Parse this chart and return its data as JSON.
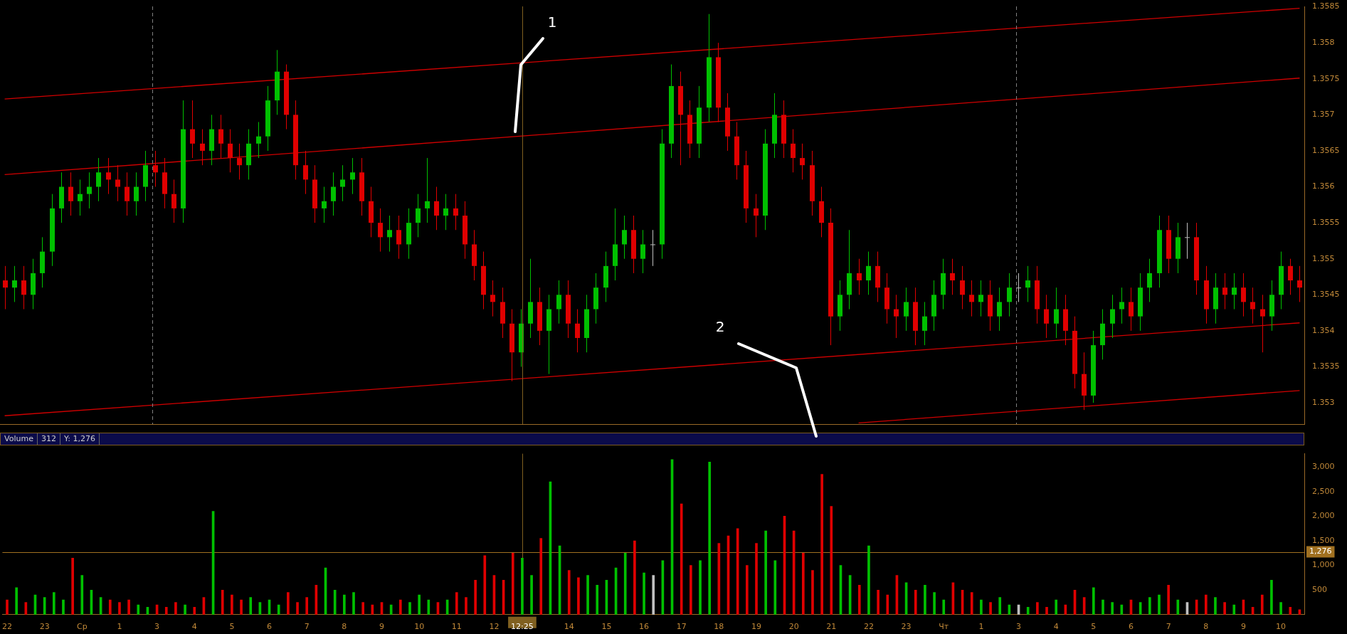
{
  "chart_data": [
    {
      "type": "candlestick",
      "tick_labels": "y",
      "ylim": [
        1.3527,
        1.3585
      ],
      "yticks": [
        1.353,
        1.3535,
        1.354,
        1.3545,
        1.355,
        1.3555,
        1.356,
        1.3565,
        1.357,
        1.3575,
        1.358,
        1.3585
      ],
      "categories": [
        null,
        null,
        null,
        null,
        null,
        null,
        null,
        null,
        null,
        null,
        null,
        null,
        null,
        null,
        null,
        null,
        null,
        null,
        null,
        null,
        null,
        null,
        null,
        null,
        null,
        null,
        null,
        null,
        null,
        null,
        null,
        null,
        null,
        null,
        null,
        null,
        null,
        null,
        null,
        null,
        null,
        null,
        null,
        null,
        null,
        null,
        null,
        null,
        null,
        null,
        null,
        null,
        null,
        null,
        null,
        null,
        null,
        null,
        null,
        null,
        null,
        null,
        null,
        null,
        null,
        null,
        null,
        null,
        null,
        null,
        null,
        null,
        null,
        null,
        null,
        null,
        null,
        null,
        null,
        null,
        null,
        null,
        null,
        null,
        null,
        null,
        null,
        null,
        null,
        null,
        null,
        null,
        null,
        null,
        null,
        null,
        null,
        null,
        null,
        null,
        null,
        null,
        null,
        null,
        null,
        null,
        null,
        null,
        null,
        null,
        null,
        null,
        null,
        null,
        null,
        null,
        null,
        null,
        null,
        null,
        null,
        null,
        null,
        null,
        null,
        null,
        null,
        null,
        null,
        null,
        null,
        null,
        null,
        null,
        null,
        null,
        null,
        null,
        null
      ],
      "ohlc": [
        [
          1.3547,
          1.3549,
          1.3543,
          1.3546
        ],
        [
          1.3546,
          1.3549,
          1.3544,
          1.3547
        ],
        [
          1.3547,
          1.3549,
          1.3543,
          1.3545
        ],
        [
          1.3545,
          1.355,
          1.3543,
          1.3548
        ],
        [
          1.3548,
          1.3553,
          1.3546,
          1.3551
        ],
        [
          1.3551,
          1.3559,
          1.3549,
          1.3557
        ],
        [
          1.3557,
          1.3562,
          1.3555,
          1.356
        ],
        [
          1.356,
          1.3562,
          1.3556,
          1.3558
        ],
        [
          1.3558,
          1.3561,
          1.3556,
          1.3559
        ],
        [
          1.3559,
          1.3562,
          1.3557,
          1.356
        ],
        [
          1.356,
          1.3564,
          1.3558,
          1.3562
        ],
        [
          1.3562,
          1.3564,
          1.3559,
          1.3561
        ],
        [
          1.3561,
          1.3563,
          1.3558,
          1.356
        ],
        [
          1.356,
          1.3562,
          1.3556,
          1.3558
        ],
        [
          1.3558,
          1.3562,
          1.3556,
          1.356
        ],
        [
          1.356,
          1.3565,
          1.3558,
          1.3563
        ],
        [
          1.3563,
          1.3565,
          1.356,
          1.3562
        ],
        [
          1.3562,
          1.3564,
          1.3557,
          1.3559
        ],
        [
          1.3559,
          1.3561,
          1.3555,
          1.3557
        ],
        [
          1.3557,
          1.3572,
          1.3555,
          1.3568
        ],
        [
          1.3568,
          1.3572,
          1.3564,
          1.3566
        ],
        [
          1.3566,
          1.3568,
          1.3563,
          1.3565
        ],
        [
          1.3565,
          1.357,
          1.3563,
          1.3568
        ],
        [
          1.3568,
          1.357,
          1.3564,
          1.3566
        ],
        [
          1.3566,
          1.3568,
          1.3562,
          1.3564
        ],
        [
          1.3564,
          1.3566,
          1.3561,
          1.3563
        ],
        [
          1.3563,
          1.3568,
          1.3561,
          1.3566
        ],
        [
          1.3566,
          1.3569,
          1.3564,
          1.3567
        ],
        [
          1.3567,
          1.3574,
          1.3565,
          1.3572
        ],
        [
          1.3572,
          1.3579,
          1.357,
          1.3576
        ],
        [
          1.3576,
          1.3577,
          1.3568,
          1.357
        ],
        [
          1.357,
          1.3572,
          1.3561,
          1.3563
        ],
        [
          1.3563,
          1.3565,
          1.3559,
          1.3561
        ],
        [
          1.3561,
          1.3563,
          1.3555,
          1.3557
        ],
        [
          1.3557,
          1.356,
          1.3555,
          1.3558
        ],
        [
          1.3558,
          1.3562,
          1.3556,
          1.356
        ],
        [
          1.356,
          1.3563,
          1.3558,
          1.3561
        ],
        [
          1.3561,
          1.3564,
          1.3559,
          1.3562
        ],
        [
          1.3562,
          1.3564,
          1.3556,
          1.3558
        ],
        [
          1.3558,
          1.356,
          1.3553,
          1.3555
        ],
        [
          1.3555,
          1.3557,
          1.3551,
          1.3553
        ],
        [
          1.3553,
          1.3556,
          1.3551,
          1.3554
        ],
        [
          1.3554,
          1.3556,
          1.355,
          1.3552
        ],
        [
          1.3552,
          1.3557,
          1.355,
          1.3555
        ],
        [
          1.3555,
          1.3559,
          1.3553,
          1.3557
        ],
        [
          1.3557,
          1.3564,
          1.3555,
          1.3558
        ],
        [
          1.3558,
          1.356,
          1.3554,
          1.3556
        ],
        [
          1.3556,
          1.3559,
          1.3554,
          1.3557
        ],
        [
          1.3557,
          1.3559,
          1.3554,
          1.3556
        ],
        [
          1.3556,
          1.3558,
          1.355,
          1.3552
        ],
        [
          1.3552,
          1.3554,
          1.3547,
          1.3549
        ],
        [
          1.3549,
          1.3551,
          1.3543,
          1.3545
        ],
        [
          1.3545,
          1.3547,
          1.3542,
          1.3544
        ],
        [
          1.3544,
          1.3546,
          1.3539,
          1.3541
        ],
        [
          1.3541,
          1.3543,
          1.3533,
          1.3537
        ],
        [
          1.3537,
          1.3543,
          1.3535,
          1.3541
        ],
        [
          1.3541,
          1.355,
          1.3539,
          1.3544
        ],
        [
          1.3544,
          1.3546,
          1.3538,
          1.354
        ],
        [
          1.354,
          1.3545,
          1.3534,
          1.3543
        ],
        [
          1.3543,
          1.3547,
          1.3541,
          1.3545
        ],
        [
          1.3545,
          1.3547,
          1.3539,
          1.3541
        ],
        [
          1.3541,
          1.3543,
          1.3537,
          1.3539
        ],
        [
          1.3539,
          1.3545,
          1.3537,
          1.3543
        ],
        [
          1.3543,
          1.3548,
          1.3541,
          1.3546
        ],
        [
          1.3546,
          1.3551,
          1.3544,
          1.3549
        ],
        [
          1.3549,
          1.3557,
          1.3547,
          1.3552
        ],
        [
          1.3552,
          1.3556,
          1.355,
          1.3554
        ],
        [
          1.3554,
          1.3556,
          1.3548,
          1.355
        ],
        [
          1.355,
          1.3554,
          1.3548,
          1.3552
        ],
        [
          1.3552,
          1.3554,
          1.3549,
          1.3552
        ],
        [
          1.3552,
          1.3568,
          1.355,
          1.3566
        ],
        [
          1.3566,
          1.3577,
          1.3564,
          1.3574
        ],
        [
          1.3574,
          1.3576,
          1.3563,
          1.357
        ],
        [
          1.357,
          1.3572,
          1.3564,
          1.3566
        ],
        [
          1.3566,
          1.3574,
          1.3564,
          1.3571
        ],
        [
          1.3571,
          1.3584,
          1.3569,
          1.3578
        ],
        [
          1.3578,
          1.358,
          1.3569,
          1.3571
        ],
        [
          1.3571,
          1.3573,
          1.3565,
          1.3567
        ],
        [
          1.3567,
          1.3569,
          1.3561,
          1.3563
        ],
        [
          1.3563,
          1.3565,
          1.3555,
          1.3557
        ],
        [
          1.3557,
          1.3559,
          1.3553,
          1.3556
        ],
        [
          1.3556,
          1.3568,
          1.3554,
          1.3566
        ],
        [
          1.3566,
          1.3573,
          1.3564,
          1.357
        ],
        [
          1.357,
          1.3572,
          1.3564,
          1.3566
        ],
        [
          1.3566,
          1.3568,
          1.3562,
          1.3564
        ],
        [
          1.3564,
          1.3566,
          1.3561,
          1.3563
        ],
        [
          1.3563,
          1.3565,
          1.3556,
          1.3558
        ],
        [
          1.3558,
          1.356,
          1.3553,
          1.3555
        ],
        [
          1.3555,
          1.3557,
          1.3538,
          1.3542
        ],
        [
          1.3542,
          1.3547,
          1.354,
          1.3545
        ],
        [
          1.3545,
          1.3554,
          1.3543,
          1.3548
        ],
        [
          1.3548,
          1.355,
          1.3545,
          1.3547
        ],
        [
          1.3547,
          1.3551,
          1.3545,
          1.3549
        ],
        [
          1.3549,
          1.3551,
          1.3544,
          1.3546
        ],
        [
          1.3546,
          1.3548,
          1.3541,
          1.3543
        ],
        [
          1.3543,
          1.3545,
          1.3539,
          1.3542
        ],
        [
          1.3542,
          1.3546,
          1.354,
          1.3544
        ],
        [
          1.3544,
          1.3546,
          1.3538,
          1.354
        ],
        [
          1.354,
          1.3544,
          1.3538,
          1.3542
        ],
        [
          1.3542,
          1.3547,
          1.354,
          1.3545
        ],
        [
          1.3545,
          1.355,
          1.3543,
          1.3548
        ],
        [
          1.3548,
          1.355,
          1.3545,
          1.3547
        ],
        [
          1.3547,
          1.3549,
          1.3543,
          1.3545
        ],
        [
          1.3545,
          1.3547,
          1.3542,
          1.3544
        ],
        [
          1.3544,
          1.3547,
          1.3542,
          1.3545
        ],
        [
          1.3545,
          1.3547,
          1.354,
          1.3542
        ],
        [
          1.3542,
          1.3546,
          1.354,
          1.3544
        ],
        [
          1.3544,
          1.3548,
          1.3542,
          1.3546
        ],
        [
          1.3546,
          1.3548,
          1.3544,
          1.3546
        ],
        [
          1.3546,
          1.3549,
          1.3544,
          1.3547
        ],
        [
          1.3547,
          1.3549,
          1.3541,
          1.3543
        ],
        [
          1.3543,
          1.3545,
          1.3539,
          1.3541
        ],
        [
          1.3541,
          1.3546,
          1.3539,
          1.3543
        ],
        [
          1.3543,
          1.3545,
          1.3538,
          1.354
        ],
        [
          1.354,
          1.3542,
          1.3532,
          1.3534
        ],
        [
          1.3534,
          1.3537,
          1.3529,
          1.3531
        ],
        [
          1.3531,
          1.354,
          1.353,
          1.3538
        ],
        [
          1.3538,
          1.3543,
          1.3536,
          1.3541
        ],
        [
          1.3541,
          1.3545,
          1.3539,
          1.3543
        ],
        [
          1.3543,
          1.3546,
          1.3541,
          1.3544
        ],
        [
          1.3544,
          1.3546,
          1.354,
          1.3542
        ],
        [
          1.3542,
          1.3548,
          1.354,
          1.3546
        ],
        [
          1.3546,
          1.355,
          1.3544,
          1.3548
        ],
        [
          1.3548,
          1.3556,
          1.3546,
          1.3554
        ],
        [
          1.3554,
          1.3556,
          1.3548,
          1.355
        ],
        [
          1.355,
          1.3555,
          1.3548,
          1.3553
        ],
        [
          1.3553,
          1.3555,
          1.355,
          1.3553
        ],
        [
          1.3553,
          1.3555,
          1.3545,
          1.3547
        ],
        [
          1.3547,
          1.3549,
          1.3541,
          1.3543
        ],
        [
          1.3543,
          1.3548,
          1.3541,
          1.3546
        ],
        [
          1.3546,
          1.3548,
          1.3543,
          1.3545
        ],
        [
          1.3545,
          1.3548,
          1.3543,
          1.3546
        ],
        [
          1.3546,
          1.3548,
          1.3542,
          1.3544
        ],
        [
          1.3544,
          1.3546,
          1.3541,
          1.3543
        ],
        [
          1.3543,
          1.3545,
          1.3537,
          1.3542
        ],
        [
          1.3542,
          1.3547,
          1.354,
          1.3545
        ],
        [
          1.3545,
          1.3551,
          1.3543,
          1.3549
        ],
        [
          1.3549,
          1.355,
          1.3545,
          1.3547
        ],
        [
          1.3547,
          1.3549,
          1.3544,
          1.3546
        ]
      ],
      "colors": [
        "#e00000",
        "#00c000",
        "#e00000",
        "#00c000",
        "#00c000",
        "#00c000",
        "#00c000",
        "#e00000",
        "#00c000",
        "#00c000",
        "#00c000",
        "#e00000",
        "#e00000",
        "#e00000",
        "#00c000",
        "#00c000",
        "#e00000",
        "#e00000",
        "#e00000",
        "#00c000",
        "#e00000",
        "#e00000",
        "#00c000",
        "#e00000",
        "#e00000",
        "#e00000",
        "#00c000",
        "#00c000",
        "#00c000",
        "#00c000",
        "#e00000",
        "#e00000",
        "#e00000",
        "#e00000",
        "#00c000",
        "#00c000",
        "#00c000",
        "#00c000",
        "#e00000",
        "#e00000",
        "#e00000",
        "#00c000",
        "#e00000",
        "#00c000",
        "#00c000",
        "#00c000",
        "#e00000",
        "#00c000",
        "#e00000",
        "#e00000",
        "#e00000",
        "#e00000",
        "#e00000",
        "#e00000",
        "#e00000",
        "#00c000",
        "#00c000",
        "#e00000",
        "#00c000",
        "#00c000",
        "#e00000",
        "#e00000",
        "#00c000",
        "#00c000",
        "#00c000",
        "#00c000",
        "#00c000",
        "#e00000",
        "#00c000",
        "#c0c0c0",
        "#00c000",
        "#00c000",
        "#e00000",
        "#e00000",
        "#00c000",
        "#00c000",
        "#e00000",
        "#e00000",
        "#e00000",
        "#e00000",
        "#e00000",
        "#00c000",
        "#00c000",
        "#e00000",
        "#e00000",
        "#e00000",
        "#e00000",
        "#e00000",
        "#e00000",
        "#00c000",
        "#00c000",
        "#e00000",
        "#00c000",
        "#e00000",
        "#e00000",
        "#e00000",
        "#00c000",
        "#e00000",
        "#00c000",
        "#00c000",
        "#00c000",
        "#e00000",
        "#e00000",
        "#e00000",
        "#00c000",
        "#e00000",
        "#00c000",
        "#00c000",
        "#c0c0c0",
        "#00c000",
        "#e00000",
        "#e00000",
        "#00c000",
        "#e00000",
        "#e00000",
        "#e00000",
        "#00c000",
        "#00c000",
        "#00c000",
        "#00c000",
        "#e00000",
        "#00c000",
        "#00c000",
        "#00c000",
        "#e00000",
        "#00c000",
        "#c0c0c0",
        "#e00000",
        "#e00000",
        "#00c000",
        "#e00000",
        "#00c000",
        "#e00000",
        "#e00000",
        "#e00000",
        "#00c000",
        "#00c000",
        "#e00000",
        "#e00000"
      ],
      "series": [
        {
          "type": "line",
          "color": "#d00000",
          "values": [
            1.35722,
            null,
            null,
            null,
            null,
            null,
            null,
            null,
            null,
            null,
            null,
            null,
            null,
            null,
            null,
            null,
            null,
            null,
            null,
            null,
            null,
            null,
            null,
            null,
            null,
            null,
            null,
            null,
            null,
            null,
            null,
            null,
            null,
            null,
            null,
            null,
            null,
            null,
            null,
            null,
            null,
            null,
            null,
            null,
            null,
            null,
            null,
            null,
            null,
            null,
            null,
            null,
            null,
            null,
            null,
            null,
            null,
            null,
            null,
            null,
            null,
            null,
            null,
            null,
            null,
            null,
            null,
            null,
            null,
            null,
            null,
            null,
            null,
            null,
            null,
            null,
            null,
            null,
            null,
            null,
            null,
            null,
            null,
            null,
            null,
            null,
            null,
            null,
            null,
            null,
            null,
            null,
            null,
            null,
            null,
            null,
            null,
            null,
            null,
            null,
            null,
            null,
            null,
            null,
            null,
            null,
            null,
            null,
            null,
            null,
            null,
            null,
            null,
            null,
            null,
            null,
            null,
            null,
            null,
            null,
            null,
            null,
            null,
            null,
            null,
            null,
            null,
            null,
            null,
            null,
            null,
            null,
            null,
            null,
            null,
            null,
            null,
            null,
            1.35848
          ]
        },
        {
          "type": "line",
          "color": "#d00000",
          "values": [
            1.35617,
            null,
            null,
            null,
            null,
            null,
            null,
            null,
            null,
            null,
            null,
            null,
            null,
            null,
            null,
            null,
            null,
            null,
            null,
            null,
            null,
            null,
            null,
            null,
            null,
            null,
            null,
            null,
            null,
            null,
            null,
            null,
            null,
            null,
            null,
            null,
            null,
            null,
            null,
            null,
            null,
            null,
            null,
            null,
            null,
            null,
            null,
            null,
            null,
            null,
            null,
            null,
            null,
            null,
            null,
            null,
            null,
            null,
            null,
            null,
            null,
            null,
            null,
            null,
            null,
            null,
            null,
            null,
            null,
            null,
            null,
            null,
            null,
            null,
            null,
            null,
            null,
            null,
            null,
            null,
            null,
            null,
            null,
            null,
            null,
            null,
            null,
            null,
            null,
            null,
            null,
            null,
            null,
            null,
            null,
            null,
            null,
            null,
            null,
            null,
            null,
            null,
            null,
            null,
            null,
            null,
            null,
            null,
            null,
            null,
            null,
            null,
            null,
            null,
            null,
            null,
            null,
            null,
            null,
            null,
            null,
            null,
            null,
            null,
            null,
            null,
            null,
            null,
            null,
            null,
            null,
            null,
            null,
            null,
            null,
            null,
            null,
            null,
            1.35751
          ]
        },
        {
          "type": "line",
          "color": "#d00000",
          "values": [
            1.35282,
            null,
            null,
            null,
            null,
            null,
            null,
            null,
            null,
            null,
            null,
            null,
            null,
            null,
            null,
            null,
            null,
            null,
            null,
            null,
            null,
            null,
            null,
            null,
            null,
            null,
            null,
            null,
            null,
            null,
            null,
            null,
            null,
            null,
            null,
            null,
            null,
            null,
            null,
            null,
            null,
            null,
            null,
            null,
            null,
            null,
            null,
            null,
            null,
            null,
            null,
            null,
            null,
            null,
            null,
            null,
            null,
            null,
            null,
            null,
            null,
            null,
            null,
            null,
            null,
            null,
            null,
            null,
            null,
            null,
            null,
            null,
            null,
            null,
            null,
            null,
            null,
            null,
            null,
            null,
            null,
            null,
            null,
            null,
            null,
            null,
            null,
            null,
            null,
            null,
            null,
            null,
            null,
            null,
            null,
            null,
            null,
            null,
            null,
            null,
            null,
            null,
            null,
            null,
            null,
            null,
            null,
            null,
            null,
            null,
            null,
            null,
            null,
            null,
            null,
            null,
            null,
            null,
            null,
            null,
            null,
            null,
            null,
            null,
            null,
            null,
            null,
            null,
            null,
            null,
            null,
            null,
            null,
            null,
            null,
            null,
            null,
            null,
            1.35411
          ]
        },
        {
          "type": "line",
          "color": "#d00000",
          "values": [
            null,
            null,
            null,
            null,
            null,
            null,
            null,
            null,
            null,
            null,
            null,
            null,
            null,
            null,
            null,
            null,
            null,
            null,
            null,
            null,
            null,
            null,
            null,
            null,
            null,
            null,
            null,
            null,
            null,
            null,
            null,
            null,
            null,
            null,
            null,
            null,
            null,
            null,
            null,
            null,
            null,
            null,
            null,
            null,
            null,
            null,
            null,
            null,
            null,
            null,
            null,
            null,
            null,
            null,
            null,
            null,
            null,
            null,
            null,
            null,
            null,
            null,
            null,
            null,
            null,
            null,
            null,
            null,
            null,
            null,
            null,
            null,
            null,
            null,
            null,
            null,
            null,
            null,
            null,
            null,
            null,
            null,
            null,
            null,
            null,
            null,
            null,
            null,
            null,
            null,
            null,
            1.35272,
            null,
            null,
            null,
            null,
            null,
            null,
            null,
            null,
            null,
            null,
            null,
            null,
            null,
            null,
            null,
            null,
            null,
            null,
            null,
            null,
            null,
            null,
            null,
            null,
            null,
            null,
            null,
            null,
            null,
            null,
            null,
            null,
            null,
            null,
            null,
            null,
            null,
            null,
            null,
            null,
            null,
            null,
            null,
            null,
            null,
            null,
            1.35317
          ]
        }
      ],
      "annotations": [
        "1",
        "2"
      ]
    },
    {
      "type": "bar",
      "title": "Volume",
      "annotations": [
        "312",
        "Y: 1,276"
      ],
      "ylim": [
        0,
        3270
      ],
      "yticks": [
        {
          "value": 500,
          "label": "500"
        },
        {
          "value": 1000,
          "label": "1,000"
        },
        {
          "value": 1500,
          "label": "1,500"
        },
        {
          "value": 2000,
          "label": "2,000"
        },
        {
          "value": 2500,
          "label": "2,500"
        },
        {
          "value": 3000,
          "label": "3,000"
        }
      ],
      "categories": [
        "22",
        null,
        null,
        null,
        "23",
        null,
        null,
        null,
        "Ср",
        null,
        null,
        null,
        "1",
        null,
        null,
        null,
        "3",
        null,
        null,
        null,
        "4",
        null,
        null,
        null,
        "5",
        null,
        null,
        null,
        "6",
        null,
        null,
        null,
        "7",
        null,
        null,
        null,
        "8",
        null,
        null,
        null,
        "9",
        null,
        null,
        null,
        "10",
        null,
        null,
        null,
        "11",
        null,
        null,
        null,
        "12",
        null,
        null,
        "12:25",
        null,
        null,
        null,
        null,
        "14",
        null,
        null,
        null,
        "15",
        null,
        null,
        null,
        "16",
        null,
        null,
        null,
        "17",
        null,
        null,
        null,
        "18",
        null,
        null,
        null,
        "19",
        null,
        null,
        null,
        "20",
        null,
        null,
        null,
        "21",
        null,
        null,
        null,
        "22",
        null,
        null,
        null,
        "23",
        null,
        null,
        null,
        "Чт",
        null,
        null,
        null,
        "1",
        null,
        null,
        null,
        "3",
        null,
        null,
        null,
        "4",
        null,
        null,
        null,
        "5",
        null,
        null,
        null,
        "6",
        null,
        null,
        null,
        "7",
        null,
        null,
        null,
        "8",
        null,
        null,
        null,
        "9",
        null,
        null,
        null,
        "10",
        null,
        null
      ],
      "values": [
        300,
        550,
        250,
        400,
        350,
        450,
        300,
        1150,
        800,
        500,
        350,
        300,
        250,
        300,
        200,
        150,
        200,
        150,
        250,
        200,
        150,
        350,
        2100,
        500,
        400,
        300,
        350,
        250,
        300,
        200,
        450,
        250,
        350,
        600,
        950,
        500,
        400,
        450,
        250,
        200,
        250,
        200,
        300,
        250,
        400,
        300,
        250,
        300,
        450,
        350,
        700,
        1200,
        800,
        700,
        1250,
        1150,
        800,
        1550,
        2700,
        1400,
        900,
        750,
        800,
        600,
        700,
        950,
        1250,
        1500,
        850,
        800,
        1100,
        3150,
        2250,
        1000,
        1100,
        3100,
        1450,
        1600,
        1750,
        1000,
        1450,
        1700,
        1100,
        2000,
        1700,
        1250,
        900,
        2850,
        2200,
        1000,
        800,
        600,
        1400,
        500,
        400,
        800,
        650,
        500,
        600,
        450,
        300,
        650,
        500,
        450,
        300,
        250,
        350,
        200,
        200,
        150,
        250,
        150,
        300,
        200,
        500,
        350,
        550,
        300,
        250,
        200,
        300,
        250,
        350,
        400,
        600,
        300,
        250,
        300,
        400,
        350,
        250,
        200,
        300,
        150,
        400,
        700,
        250,
        150,
        100
      ],
      "colors": [
        "#e00000",
        "#00c000",
        "#e00000",
        "#00c000",
        "#00c000",
        "#00c000",
        "#00c000",
        "#e00000",
        "#00c000",
        "#00c000",
        "#00c000",
        "#e00000",
        "#e00000",
        "#e00000",
        "#00c000",
        "#00c000",
        "#e00000",
        "#e00000",
        "#e00000",
        "#00c000",
        "#e00000",
        "#e00000",
        "#00c000",
        "#e00000",
        "#e00000",
        "#e00000",
        "#00c000",
        "#00c000",
        "#00c000",
        "#00c000",
        "#e00000",
        "#e00000",
        "#e00000",
        "#e00000",
        "#00c000",
        "#00c000",
        "#00c000",
        "#00c000",
        "#e00000",
        "#e00000",
        "#e00000",
        "#00c000",
        "#e00000",
        "#00c000",
        "#00c000",
        "#00c000",
        "#e00000",
        "#00c000",
        "#e00000",
        "#e00000",
        "#e00000",
        "#e00000",
        "#e00000",
        "#e00000",
        "#e00000",
        "#00c000",
        "#00c000",
        "#e00000",
        "#00c000",
        "#00c000",
        "#e00000",
        "#e00000",
        "#00c000",
        "#00c000",
        "#00c000",
        "#00c000",
        "#00c000",
        "#e00000",
        "#00c000",
        "#c0c0c0",
        "#00c000",
        "#00c000",
        "#e00000",
        "#e00000",
        "#00c000",
        "#00c000",
        "#e00000",
        "#e00000",
        "#e00000",
        "#e00000",
        "#e00000",
        "#00c000",
        "#00c000",
        "#e00000",
        "#e00000",
        "#e00000",
        "#e00000",
        "#e00000",
        "#e00000",
        "#00c000",
        "#00c000",
        "#e00000",
        "#00c000",
        "#e00000",
        "#e00000",
        "#e00000",
        "#00c000",
        "#e00000",
        "#00c000",
        "#00c000",
        "#00c000",
        "#e00000",
        "#e00000",
        "#e00000",
        "#00c000",
        "#e00000",
        "#00c000",
        "#00c000",
        "#c0c0c0",
        "#00c000",
        "#e00000",
        "#e00000",
        "#00c000",
        "#e00000",
        "#e00000",
        "#e00000",
        "#00c000",
        "#00c000",
        "#00c000",
        "#00c000",
        "#e00000",
        "#00c000",
        "#00c000",
        "#00c000",
        "#e00000",
        "#00c000",
        "#c0c0c0",
        "#e00000",
        "#e00000",
        "#00c000",
        "#e00000",
        "#00c000",
        "#e00000",
        "#e00000",
        "#e00000",
        "#00c000",
        "#00c000",
        "#e00000",
        "#e00000"
      ],
      "ref_lines": [
        {
          "axis": "x",
          "value": "12:25",
          "color": "#806020",
          "line_style": "solid"
        },
        {
          "axis": "y",
          "value": 1276,
          "label": "1,276",
          "color": "#a07020",
          "line_style": "solid"
        }
      ]
    }
  ]
}
